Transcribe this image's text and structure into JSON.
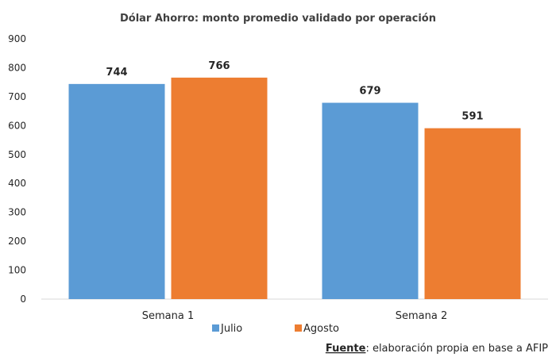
{
  "chart_data": {
    "type": "bar",
    "title": "Dólar Ahorro: monto promedio validado por operación",
    "categories": [
      "Semana 1",
      "Semana 2"
    ],
    "series": [
      {
        "name": "Julio",
        "values": [
          744,
          679
        ],
        "color": "#5B9BD5"
      },
      {
        "name": "Agosto",
        "values": [
          766,
          591
        ],
        "color": "#ED7D31"
      }
    ],
    "ylim": [
      0,
      900
    ],
    "yticks": [
      0,
      100,
      200,
      300,
      400,
      500,
      600,
      700,
      800,
      900
    ],
    "grid": false,
    "legend": "bottom",
    "data_labels": true
  },
  "source": {
    "label": "Fuente",
    "text": ": elaboración propia en base a AFIP"
  }
}
